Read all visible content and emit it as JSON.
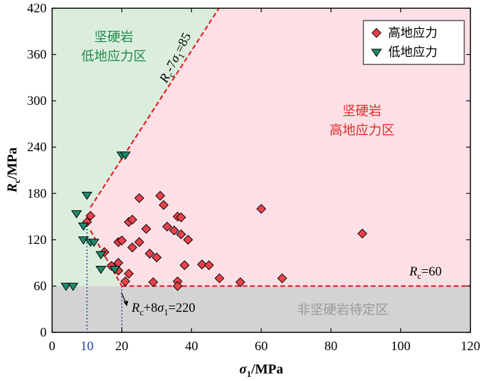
{
  "chart_data": {
    "type": "scatter",
    "xlabel": "σ1/MPa",
    "ylabel": "Rc/MPa",
    "xlim": [
      0,
      120
    ],
    "ylim": [
      0,
      420
    ],
    "x_ticks": [
      0,
      20,
      40,
      60,
      80,
      100,
      120
    ],
    "y_ticks": [
      0,
      60,
      120,
      180,
      240,
      300,
      360,
      420
    ],
    "extra_x_tick": {
      "value": 10,
      "label": "10",
      "color": "#1f3a93"
    },
    "series": [
      {
        "name": "高地应力",
        "marker": "diamond",
        "color": "#e8434b",
        "points": [
          [
            10,
            143
          ],
          [
            11,
            151
          ],
          [
            15,
            104
          ],
          [
            17,
            86
          ],
          [
            19,
            117
          ],
          [
            19,
            90
          ],
          [
            19,
            80
          ],
          [
            20,
            119
          ],
          [
            21,
            66
          ],
          [
            22,
            143
          ],
          [
            22,
            76
          ],
          [
            23,
            110
          ],
          [
            23,
            146
          ],
          [
            25,
            117
          ],
          [
            25,
            174
          ],
          [
            27,
            134
          ],
          [
            28,
            102
          ],
          [
            29,
            65
          ],
          [
            30,
            97
          ],
          [
            31,
            177
          ],
          [
            32,
            165
          ],
          [
            33,
            137
          ],
          [
            35,
            132
          ],
          [
            36,
            150
          ],
          [
            36,
            66
          ],
          [
            36,
            60
          ],
          [
            37,
            149
          ],
          [
            37,
            127
          ],
          [
            38,
            87
          ],
          [
            39,
            120
          ],
          [
            43,
            88
          ],
          [
            45,
            87
          ],
          [
            48,
            70
          ],
          [
            54,
            65
          ],
          [
            60,
            160
          ],
          [
            66,
            70
          ],
          [
            89,
            128
          ]
        ]
      },
      {
        "name": "低地应力",
        "marker": "triangle-down",
        "color": "#1f8a6a",
        "points": [
          [
            4,
            60
          ],
          [
            6,
            60
          ],
          [
            7,
            154
          ],
          [
            9,
            138
          ],
          [
            9,
            120
          ],
          [
            10,
            178
          ],
          [
            11,
            117
          ],
          [
            12,
            117
          ],
          [
            14,
            101
          ],
          [
            14,
            82
          ],
          [
            18,
            82
          ],
          [
            20,
            230
          ],
          [
            21,
            230
          ]
        ]
      }
    ],
    "boundaries": [
      {
        "label_parts": [
          "R",
          "c",
          "-7",
          "σ",
          "1",
          "=85"
        ],
        "slope": 7,
        "intercept": 85,
        "x_from": 11,
        "x_to": 49.3
      },
      {
        "label_parts": [
          "R",
          "c",
          "+8",
          "σ",
          "1",
          "=220"
        ],
        "slope": -8,
        "intercept": 220,
        "x_from": 11,
        "x_to": 20
      },
      {
        "label_parts": [
          "R",
          "c",
          "=60"
        ],
        "y": 60,
        "x_from": 20,
        "x_to": 120
      }
    ],
    "zones": [
      {
        "lines": [
          "坚硬岩",
          "低地应力区"
        ],
        "color": "#1f8a4c"
      },
      {
        "lines": [
          "坚硬岩",
          "高地应力区"
        ],
        "color": "#e32b2b"
      },
      {
        "lines": [
          "非坚硬岩待定区"
        ],
        "color": "#9a9a9a"
      }
    ],
    "colors": {
      "green_zone": "#dbeedd",
      "pink_zone": "#fde0e6",
      "gray_zone": "#d3d3d3",
      "boundary": "#e21a1a",
      "guide": "#1f3a93"
    },
    "grid": false,
    "legend_position": "top-right"
  }
}
